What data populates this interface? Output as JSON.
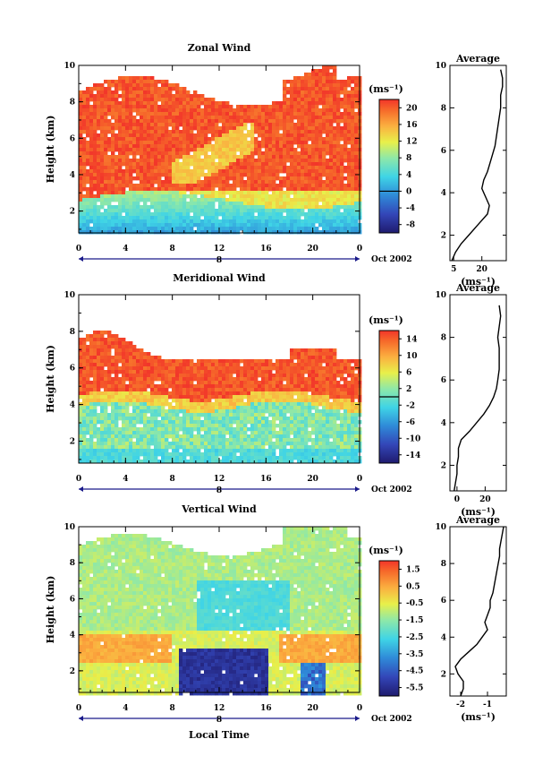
{
  "figure": {
    "date_label": "Oct 2002",
    "xlabel": "Local Time",
    "day_label": "8",
    "x_ticks": [
      "0",
      "4",
      "8",
      "12",
      "16",
      "20",
      "0"
    ],
    "height_ticks": [
      "2",
      "4",
      "6",
      "8",
      "10"
    ]
  },
  "chart_data": [
    {
      "type": "heatmap",
      "title": "Zonal Wind",
      "xlabel": "",
      "ylabel": "Height (km)",
      "unit_label": "(ms⁻¹)",
      "xlim": [
        0,
        24
      ],
      "ylim": [
        0.8,
        10
      ],
      "colorbar": {
        "ticks": [
          "-8",
          "-4",
          "0",
          "4",
          "8",
          "12",
          "16",
          "20"
        ],
        "range": [
          -10,
          22
        ],
        "contour": 0
      },
      "average": {
        "title": "Average",
        "xlabel": "(ms⁻¹)",
        "xlim": [
          3,
          33
        ],
        "x_ticks": [
          "5",
          "20"
        ],
        "height": [
          0.8,
          1.2,
          1.6,
          2.0,
          2.5,
          3.0,
          3.4,
          3.8,
          4.2,
          4.6,
          5.0,
          5.6,
          6.2,
          6.8,
          7.4,
          8.0,
          8.6,
          9.0,
          9.4,
          9.8
        ],
        "value": [
          4,
          6,
          9,
          13,
          18,
          23,
          24,
          22,
          20,
          21,
          23,
          25,
          27,
          28,
          29,
          30,
          30,
          31,
          31,
          30
        ]
      }
    },
    {
      "type": "heatmap",
      "title": "Meridional Wind",
      "xlabel": "",
      "ylabel": "Height (km)",
      "unit_label": "(ms⁻¹)",
      "xlim": [
        0,
        24
      ],
      "ylim": [
        0.8,
        10
      ],
      "colorbar": {
        "ticks": [
          "-14",
          "-10",
          "-6",
          "-2",
          "2",
          "6",
          "10",
          "14"
        ],
        "range": [
          -16,
          16
        ],
        "contour": 0
      },
      "average": {
        "title": "Average",
        "xlabel": "(ms⁻¹)",
        "xlim": [
          -5,
          35
        ],
        "x_ticks": [
          "0",
          "20"
        ],
        "height": [
          0.8,
          1.2,
          1.6,
          2.0,
          2.4,
          2.8,
          3.2,
          3.6,
          4.0,
          4.4,
          4.8,
          5.2,
          5.6,
          6.0,
          6.5,
          7.0,
          7.5,
          8.0,
          8.5,
          9.0,
          9.5
        ],
        "value": [
          -2,
          -1,
          0,
          0,
          1,
          1,
          3,
          9,
          14,
          19,
          23,
          26,
          28,
          29,
          30,
          30,
          30,
          29,
          30,
          31,
          30
        ]
      }
    },
    {
      "type": "heatmap",
      "title": "Vertical Wind",
      "xlabel": "Local Time",
      "ylabel": "Height (km)",
      "unit_label": "(ms⁻¹)",
      "xlim": [
        0,
        24
      ],
      "ylim": [
        0.8,
        10
      ],
      "colorbar": {
        "ticks": [
          "-5.5",
          "-4.5",
          "-3.5",
          "-2.5",
          "-1.5",
          "-0.5",
          "0.5",
          "1.5"
        ],
        "range": [
          -6,
          2
        ],
        "contour": null
      },
      "average": {
        "title": "Average",
        "xlabel": "(ms⁻¹)",
        "xlim": [
          -2.4,
          -0.3
        ],
        "x_ticks": [
          "-2",
          "-1"
        ],
        "height": [
          0.8,
          1.2,
          1.6,
          2.0,
          2.4,
          2.8,
          3.2,
          3.6,
          4.0,
          4.4,
          4.8,
          5.2,
          5.6,
          6.0,
          6.4,
          6.8,
          7.2,
          7.6,
          8.0,
          8.4,
          8.8,
          9.2,
          9.6,
          10.0
        ],
        "value": [
          -2.0,
          -1.9,
          -1.9,
          -2.1,
          -2.2,
          -2.0,
          -1.7,
          -1.4,
          -1.2,
          -1.0,
          -1.1,
          -1.0,
          -0.9,
          -0.9,
          -0.8,
          -0.75,
          -0.7,
          -0.65,
          -0.6,
          -0.55,
          -0.55,
          -0.5,
          -0.45,
          -0.4
        ]
      }
    }
  ]
}
